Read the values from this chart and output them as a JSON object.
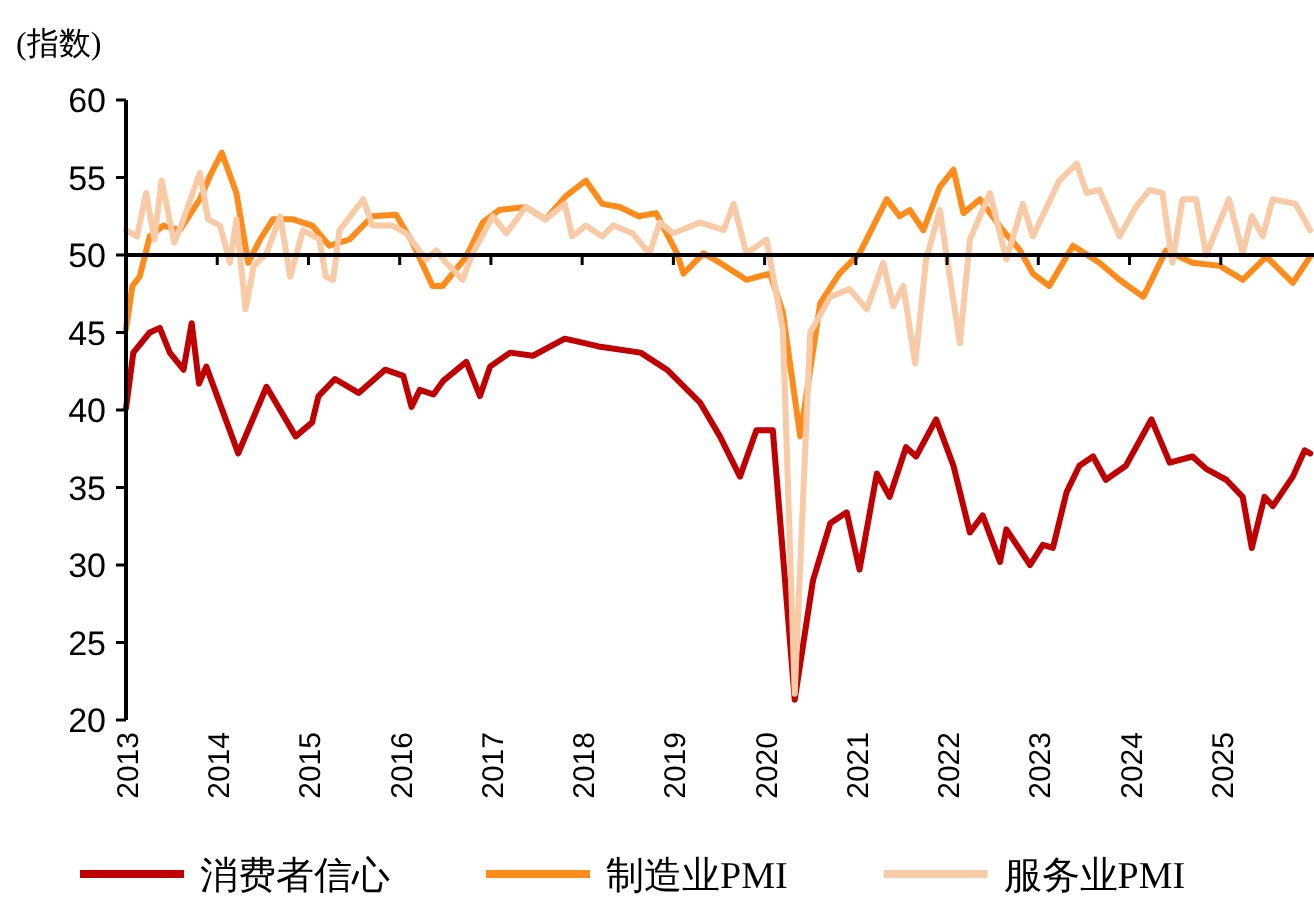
{
  "chart_data": {
    "type": "line",
    "ylabel": "(指数)",
    "xlim": [
      2013,
      2026
    ],
    "xticks": [
      2013,
      2014,
      2015,
      2016,
      2017,
      2018,
      2019,
      2020,
      2021,
      2022,
      2023,
      2024,
      2025
    ],
    "ylim": [
      20,
      60
    ],
    "yticks": [
      20,
      25,
      30,
      35,
      40,
      45,
      50,
      55,
      60
    ],
    "legend": "bottom",
    "ref_lines": [
      {
        "axis": "y",
        "value": 50,
        "color": "#000000"
      }
    ],
    "series": [
      {
        "name": "消费者信心",
        "color": "#c00000",
        "x": [
          2013.0,
          2013.08,
          2013.26,
          2013.37,
          2013.48,
          2013.63,
          2013.72,
          2013.8,
          2013.88,
          2014.23,
          2014.54,
          2014.86,
          2015.04,
          2015.11,
          2015.29,
          2015.55,
          2015.84,
          2016.04,
          2016.13,
          2016.22,
          2016.37,
          2016.48,
          2016.73,
          2016.88,
          2016.99,
          2017.21,
          2017.46,
          2017.81,
          2018.18,
          2018.64,
          2018.93,
          2019.29,
          2019.51,
          2019.73,
          2019.91,
          2020.09,
          2020.33,
          2020.53,
          2020.72,
          2020.9,
          2021.04,
          2021.23,
          2021.37,
          2021.55,
          2021.66,
          2021.88,
          2022.07,
          2022.25,
          2022.39,
          2022.58,
          2022.65,
          2022.91,
          2023.05,
          2023.16,
          2023.31,
          2023.45,
          2023.6,
          2023.74,
          2023.96,
          2024.24,
          2024.44,
          2024.69,
          2024.84,
          2025.06,
          2025.24,
          2025.34,
          2025.48,
          2025.57,
          2025.79,
          2025.92,
          2025.98
        ],
        "values": [
          40.1,
          43.7,
          45.0,
          45.3,
          43.7,
          42.6,
          45.6,
          41.7,
          42.8,
          37.2,
          41.5,
          38.3,
          39.2,
          40.9,
          42.0,
          41.1,
          42.6,
          42.2,
          40.2,
          41.3,
          41.0,
          41.9,
          43.1,
          40.9,
          42.8,
          43.7,
          43.5,
          44.6,
          44.1,
          43.7,
          42.6,
          40.5,
          38.3,
          35.7,
          38.7,
          38.7,
          21.3,
          29.0,
          32.7,
          33.4,
          29.7,
          35.9,
          34.4,
          37.6,
          37.0,
          39.4,
          36.4,
          32.1,
          33.2,
          30.2,
          32.3,
          30.0,
          31.3,
          31.1,
          34.7,
          36.4,
          37.0,
          35.5,
          36.4,
          39.4,
          36.6,
          37.0,
          36.2,
          35.5,
          34.4,
          31.1,
          34.4,
          33.8,
          35.7,
          37.4,
          37.2
        ]
      },
      {
        "name": "制造业PMI",
        "color": "#ff8c1a",
        "x": [
          2013.0,
          2013.07,
          2013.15,
          2013.26,
          2013.41,
          2013.59,
          2013.81,
          2013.92,
          2014.05,
          2014.21,
          2014.34,
          2014.47,
          2014.61,
          2014.83,
          2015.04,
          2015.23,
          2015.45,
          2015.7,
          2015.96,
          2016.14,
          2016.36,
          2016.47,
          2016.73,
          2016.91,
          2017.09,
          2017.38,
          2017.6,
          2017.82,
          2018.04,
          2018.22,
          2018.41,
          2018.62,
          2018.81,
          2019.04,
          2019.11,
          2019.33,
          2019.51,
          2019.8,
          2020.06,
          2020.2,
          2020.39,
          2020.61,
          2020.82,
          2021.04,
          2021.34,
          2021.48,
          2021.59,
          2021.74,
          2021.92,
          2022.07,
          2022.18,
          2022.36,
          2022.61,
          2022.8,
          2022.94,
          2023.12,
          2023.38,
          2023.67,
          2023.89,
          2024.15,
          2024.4,
          2024.69,
          2024.99,
          2025.24,
          2025.5,
          2025.79,
          2025.98
        ],
        "values": [
          45.2,
          48.0,
          48.6,
          51.2,
          51.9,
          51.6,
          53.6,
          55.1,
          56.6,
          54.0,
          49.5,
          51.0,
          52.3,
          52.3,
          51.9,
          50.6,
          51.0,
          52.5,
          52.6,
          50.8,
          48.0,
          48.0,
          49.9,
          52.1,
          52.9,
          53.1,
          52.3,
          53.8,
          54.8,
          53.3,
          53.1,
          52.5,
          52.7,
          50.1,
          48.8,
          50.1,
          49.5,
          48.4,
          48.8,
          46.3,
          38.3,
          46.9,
          48.8,
          50.1,
          53.6,
          52.5,
          52.9,
          51.6,
          54.4,
          55.5,
          52.7,
          53.6,
          51.6,
          50.3,
          48.8,
          48.0,
          50.6,
          49.5,
          48.4,
          47.3,
          50.3,
          49.5,
          49.3,
          48.4,
          49.9,
          48.2,
          49.9
        ]
      },
      {
        "name": "服务业PMI",
        "color": "#f8cba6",
        "x": [
          2013.0,
          2013.12,
          2013.22,
          2013.31,
          2013.39,
          2013.53,
          2013.63,
          2013.81,
          2013.9,
          2014.03,
          2014.14,
          2014.21,
          2014.31,
          2014.4,
          2014.54,
          2014.69,
          2014.8,
          2014.94,
          2015.12,
          2015.19,
          2015.27,
          2015.34,
          2015.6,
          2015.7,
          2015.92,
          2016.07,
          2016.29,
          2016.4,
          2016.51,
          2016.69,
          2016.8,
          2017.02,
          2017.17,
          2017.38,
          2017.6,
          2017.81,
          2017.89,
          2018.04,
          2018.22,
          2018.34,
          2018.55,
          2018.74,
          2018.85,
          2019.0,
          2019.29,
          2019.55,
          2019.66,
          2019.8,
          2020.02,
          2020.2,
          2020.33,
          2020.5,
          2020.72,
          2020.93,
          2021.12,
          2021.3,
          2021.41,
          2021.52,
          2021.65,
          2021.77,
          2021.92,
          2022.14,
          2022.25,
          2022.47,
          2022.65,
          2022.83,
          2022.94,
          2023.23,
          2023.42,
          2023.53,
          2023.67,
          2023.89,
          2024.07,
          2024.22,
          2024.36,
          2024.47,
          2024.58,
          2024.73,
          2024.84,
          2025.09,
          2025.24,
          2025.34,
          2025.46,
          2025.57,
          2025.82,
          2025.98
        ],
        "values": [
          51.6,
          51.2,
          54.0,
          51.0,
          54.8,
          50.8,
          52.3,
          55.3,
          52.3,
          51.9,
          49.5,
          52.3,
          46.5,
          49.3,
          50.1,
          52.5,
          48.6,
          51.6,
          51.0,
          48.6,
          48.4,
          51.6,
          53.6,
          51.9,
          51.9,
          51.4,
          49.7,
          50.3,
          49.5,
          48.4,
          50.1,
          52.5,
          51.4,
          53.1,
          52.3,
          53.3,
          51.2,
          51.9,
          51.2,
          51.9,
          51.4,
          50.1,
          52.1,
          51.4,
          52.1,
          51.6,
          53.3,
          50.1,
          51.0,
          45.2,
          21.7,
          45.0,
          47.3,
          47.8,
          46.5,
          49.5,
          46.7,
          48.0,
          43.0,
          49.7,
          52.9,
          44.3,
          51.0,
          54.0,
          49.7,
          53.3,
          51.2,
          54.8,
          55.9,
          54.0,
          54.2,
          51.2,
          53.1,
          54.2,
          54.0,
          49.5,
          53.6,
          53.6,
          50.0,
          53.6,
          50.1,
          52.5,
          51.2,
          53.6,
          53.3,
          51.6
        ]
      }
    ]
  }
}
